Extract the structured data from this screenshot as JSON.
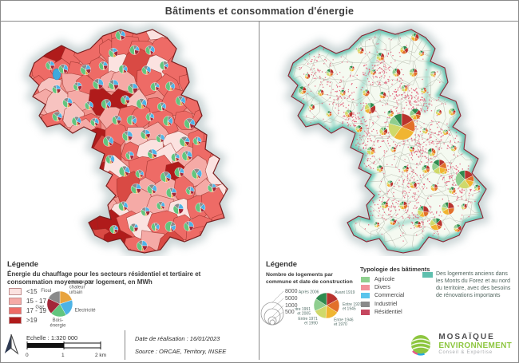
{
  "title": "Bâtiments et consommation d'énergie",
  "left_legend": {
    "heading": "Légende",
    "subtitle": "Énergie du chauffage pour les secteurs résidentiel et tertiaire et consommation moyenne par logement, en MWh",
    "classes": [
      {
        "label": "<15",
        "color": "#fbe2e0"
      },
      {
        "label": "15 - 17",
        "color": "#f5aaa6"
      },
      {
        "label": "17 - 19",
        "color": "#ee6b66"
      },
      {
        "label": ">19",
        "color": "#b01b1b"
      }
    ],
    "pie": {
      "slices": [
        {
          "label": "Réseau de chaleur urbain",
          "color": "#e8a33d",
          "value": 20
        },
        {
          "label": "Electricité",
          "color": "#4db3e6",
          "value": 22
        },
        {
          "label": "Bois-énergie",
          "color": "#62c57e",
          "value": 20
        },
        {
          "label": "Gaz",
          "color": "#a32638",
          "value": 20
        },
        {
          "label": "Fioul",
          "color": "#8a8a8a",
          "value": 18
        }
      ]
    }
  },
  "right_legend": {
    "heading": "Légende",
    "subtitle": "Nombre de logements par commune et date de construction",
    "circle_sizes": [
      "8000",
      "5000",
      "1000",
      "500"
    ],
    "date_pie": {
      "slices": [
        {
          "label": "Avant 1919",
          "color": "#b8332e",
          "value": 17
        },
        {
          "label": "Entre 1920 et 1945",
          "color": "#e2702a",
          "value": 17
        },
        {
          "label": "Entre 1946 et 1970",
          "color": "#f0b531",
          "value": 17
        },
        {
          "label": "Entre 1971 et 1990",
          "color": "#cfd96a",
          "value": 17
        },
        {
          "label": "Entre 1991 et 2005",
          "color": "#8fce8f",
          "value": 16
        },
        {
          "label": "Après 2006",
          "color": "#2e8b4f",
          "value": 16
        }
      ]
    },
    "typology": {
      "heading": "Typologie des bâtiments",
      "items": [
        {
          "label": "Agricole",
          "color": "#8fd08f"
        },
        {
          "label": "Divers",
          "color": "#f2919b"
        },
        {
          "label": "Commercial",
          "color": "#5bc4ec"
        },
        {
          "label": "Industriel",
          "color": "#8a8a8a"
        },
        {
          "label": "Résidentiel",
          "color": "#c5475f"
        }
      ]
    },
    "note": {
      "swatch_color": "#5fbfae",
      "text": "Des logements anciens dans les Monts du Forez et au nord du territoire, avec des besoins de rénovations importants"
    }
  },
  "maps": {
    "glow_color": "#a9babc",
    "energy_map": {
      "outline_color": "#7a1f1f",
      "lake_color": "#3fa9dc",
      "base_fill": "#f0918b"
    },
    "buildings_map": {
      "fill_color": "#f5faf1",
      "outline_color": "#8b2332",
      "boundary_color": "#b3b6a8",
      "speckle_color": "#e25c77",
      "highlight_color": "#57c0ad"
    }
  },
  "footer": {
    "scale_label": "Echelle : 1:320 000",
    "scale_ticks": [
      "0",
      "1",
      "2 km"
    ],
    "date_line": "Date de réalisation : 16/01/2023",
    "source_line": "Source : ORCAE, Territory, INSEE",
    "logo": {
      "line1": "MOSAÏQUE",
      "line2": "ENVIRONNEMENT",
      "tagline": "Conseil & Expertise",
      "accent": "#8dc63f"
    }
  }
}
